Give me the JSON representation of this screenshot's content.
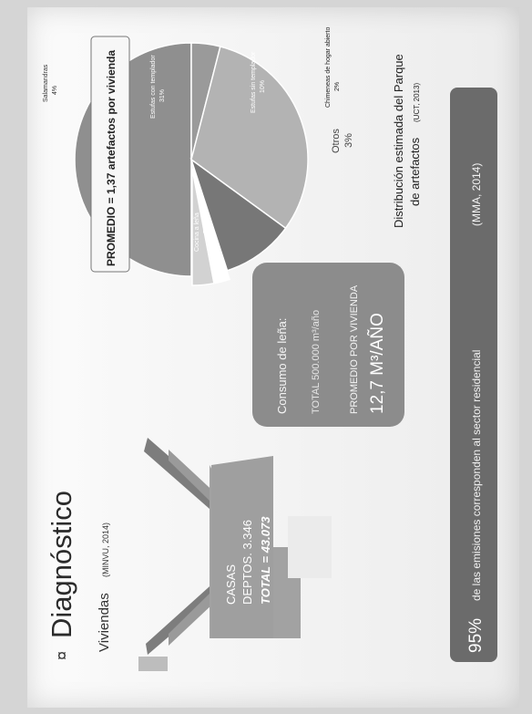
{
  "title": "Diagnóstico",
  "bullet": "¤",
  "viviendas_label": "Viviendas",
  "viviendas_source": "(MINVU, 2014)",
  "house": {
    "casas": "CASAS",
    "deptos": "DEPTOS. 3.346",
    "total": "TOTAL = 43.073"
  },
  "consumo": {
    "title": "Consumo de leña:",
    "total": "TOTAL 500.000 m³/año",
    "promedio_label": "PROMEDIO POR VIVIENDA",
    "promedio_value": "12,7 M³/AÑO"
  },
  "promedio_banner": "PROMEDIO = 1,37 artefactos por vivienda",
  "chart_caption_line1": "Distribución estimada del Parque",
  "chart_caption_line2": "de artefactos",
  "chart_caption_source": "(UCT, 2013)",
  "footer": {
    "percent": "95%",
    "text": "de las emisiones corresponden al sector residencial",
    "source": "(MMA, 2014)"
  },
  "colors": {
    "pie_cocina": "#8f8f8f",
    "pie_estufa_con": "#b3b3b3",
    "pie_estufa_sin": "#777777",
    "pie_salamandras": "#9a9a9a",
    "pie_chimeneas": "#ffffff",
    "pie_otros": "#d2d2d2",
    "footer_bg": "#6b6b6b",
    "box_bg": "#8c8c8c"
  },
  "chart_data": {
    "type": "pie",
    "title": "",
    "slices": [
      {
        "label": "Cocina a leña",
        "value": 50,
        "display": "50%"
      },
      {
        "label": "Estufas con templador",
        "value": 31,
        "display": "31%"
      },
      {
        "label": "Estufas sin templador",
        "value": 10,
        "display": "10%"
      },
      {
        "label": "Salamandras",
        "value": 4,
        "display": "4%"
      },
      {
        "label": "Chimeneas de hogar abierto",
        "value": 2,
        "display": "2%"
      },
      {
        "label": "Otros",
        "value": 3,
        "display": "3%"
      }
    ]
  }
}
